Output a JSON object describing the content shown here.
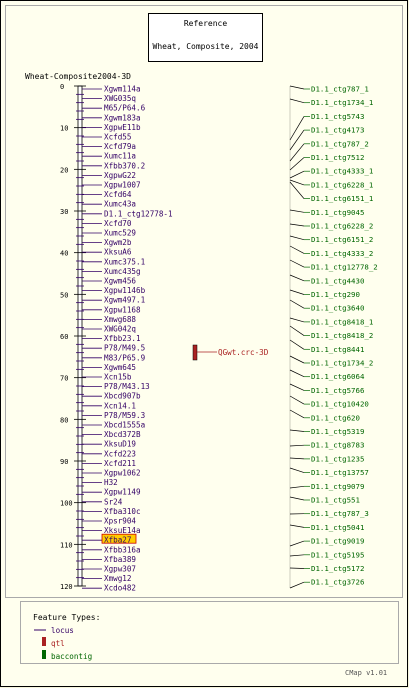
{
  "reference": {
    "title": "Reference",
    "subtitle": "Wheat, Composite, 2004"
  },
  "map_title": "Wheat-Composite2004-3D",
  "axis_ticks": [
    0,
    10,
    20,
    30,
    40,
    50,
    60,
    70,
    80,
    90,
    100,
    110,
    120
  ],
  "markers": [
    "Xgwm114a",
    "XWG035q",
    "M65/P64.6",
    "Xgwm183a",
    "XgpwE11b",
    "Xcfd55",
    "Xcfd79a",
    "Xumc11a",
    "Xfbb370.2",
    "XgpwG22",
    "Xgpw1007",
    "Xcfd64",
    "Xumc43a",
    "D1.1_ctg12778-1",
    "Xcfd70",
    "Xumc529",
    "Xgwm2b",
    "XksuA6",
    "Xumc375.1",
    "Xumc435g",
    "Xgwm456",
    "Xgpw1146b",
    "Xgwm497.1",
    "Xgpw1168",
    "Xmwg688",
    "XWG042q",
    "Xfbb23.1",
    "P78/M49.5",
    "M83/P65.9",
    "Xgwm645",
    "Xcn15b",
    "P78/M43.13",
    "Xbcd907b",
    "Xcn14.1",
    "P78/M59.3",
    "Xbcd1555a",
    "Xbcd372B",
    "XksuD19",
    "Xcfd223",
    "Xcfd211",
    "Xgpw1062",
    "H32",
    "Xgpw1149",
    "Sr24",
    "Xfba310c",
    "Xpsr904",
    "XksuE14a",
    "Xfba27",
    "Xfbb316a",
    "Xfba389",
    "Xgpw307",
    "Xmwg12",
    "Xcdo482"
  ],
  "highlighted_marker": "Xfba27",
  "qtl": {
    "label": "QGwt.crc-3D"
  },
  "contigs": [
    "D1.1_ctg787_1",
    "D1.1_ctg1734_1",
    "D1.1_ctg5743",
    "D1.1_ctg4173",
    "D1.1_ctg787_2",
    "D1.1_ctg7512",
    "D1.1_ctg4333_1",
    "D1.1_ctg6228_1",
    "D1.1_ctg6151_1",
    "D1.1_ctg9045",
    "D1.1_ctg6228_2",
    "D1.1_ctg6151_2",
    "D1.1_ctg4333_2",
    "D1.1_ctg12778_2",
    "D1.1_ctg4430",
    "D1.1_ctg290",
    "D1.1_ctg3640",
    "D1.1_ctg8418_1",
    "D1.1_ctg8418_2",
    "D1.1_ctg8441",
    "D1.1_ctg1734_2",
    "D1.1_ctg6064",
    "D1.1_ctg5766",
    "D1.1_ctg10420",
    "D1.1_ctg620",
    "D1.1_ctg5319",
    "D1.1_ctg8783",
    "D1.1_ctg1235",
    "D1.1_ctg13757",
    "D1.1_ctg9079",
    "D1.1_ctg551",
    "D1.1_ctg787_3",
    "D1.1_ctg5041",
    "D1.1_ctg9019",
    "D1.1_ctg5195",
    "D1.1_ctg5172",
    "D1.1_ctg3726"
  ],
  "legend": {
    "title": "Feature Types:",
    "items": [
      {
        "label": "locus",
        "color": "#330066"
      },
      {
        "label": "qtl",
        "color": "#aa2222"
      },
      {
        "label": "baccontig",
        "color": "#006600"
      }
    ]
  },
  "footer": "CMap v1.01",
  "colors": {
    "marker": "#330066",
    "contig": "#006600",
    "qtl": "#aa2222",
    "highlight": "#ffcc00"
  }
}
